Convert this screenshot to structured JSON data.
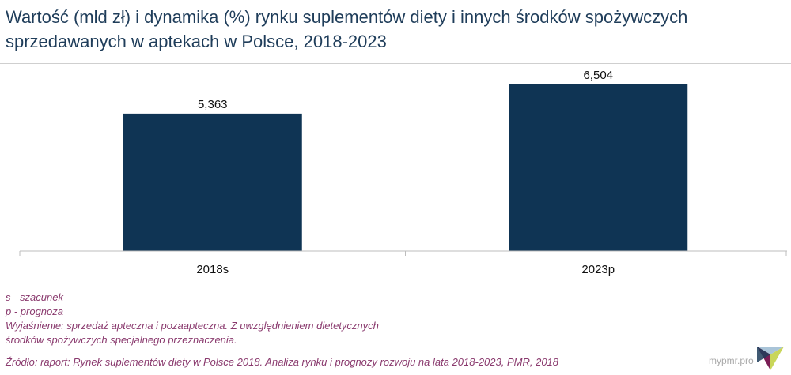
{
  "title": {
    "line1": "Wartość (mld zł) i dynamika (%) rynku suplementów diety i innych środków spożywczych",
    "line2": "sprzedawanych w aptekach w Polsce, 2018-2023"
  },
  "chart_data": {
    "type": "bar",
    "categories": [
      "2018s",
      "2023p"
    ],
    "values": [
      5.363,
      6.504
    ],
    "data_labels": [
      "5,363",
      "6,504"
    ],
    "title": "Wartość (mld zł) i dynamika (%) rynku suplementów diety i innych środków spożywczych sprzedawanych w aptekach w Polsce, 2018-2023",
    "xlabel": "",
    "ylabel": "",
    "ylim": [
      0,
      7.3
    ],
    "grid": false,
    "legend": "none",
    "bar_color": "#0f3454"
  },
  "notes": [
    "s - szacunek",
    "p - prognoza",
    "Wyjaśnienie: sprzedaż apteczna i pozaapteczna. Z uwzględnieniem dietetycznych",
    "środków spożywczych specjalnego przeznaczenia."
  ],
  "source": "Źródło: raport: Rynek suplementów diety w Polsce 2018. Analiza rynku i prognozy rozwoju na lata 2018-2023, PMR, 2018",
  "brand": "mypmr.pro",
  "colors": {
    "title": "#1f3d5a",
    "bar": "#0f3454",
    "notes": "#8a3a6e",
    "brand": "#a9a9a9"
  }
}
